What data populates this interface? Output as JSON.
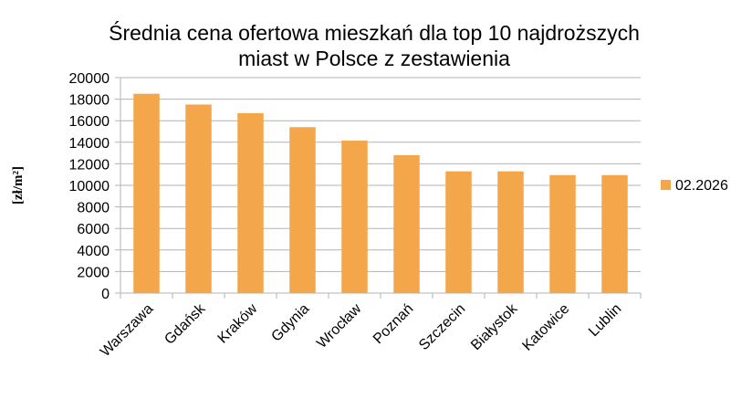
{
  "chart_data": {
    "type": "bar",
    "title": "Średnia cena ofertowa mieszkań dla top 10 najdroższych miast w Polsce z zestawienia",
    "y_label": "[zł/m²]",
    "categories": [
      "Warszawa",
      "Gdańsk",
      "Kraków",
      "Gdynia",
      "Wrocław",
      "Poznań",
      "Szczecin",
      "Białystok",
      "Katowice",
      "Lublin"
    ],
    "series": [
      {
        "name": "02.2026",
        "color": "#f4a64a",
        "values": [
          18500,
          17500,
          16700,
          15400,
          14150,
          12800,
          11300,
          11300,
          10950,
          10950
        ]
      }
    ],
    "ylim": [
      0,
      20000
    ],
    "yticks": [
      0,
      2000,
      4000,
      6000,
      8000,
      10000,
      12000,
      14000,
      16000,
      18000,
      20000
    ],
    "grid": true,
    "legend": "right"
  }
}
